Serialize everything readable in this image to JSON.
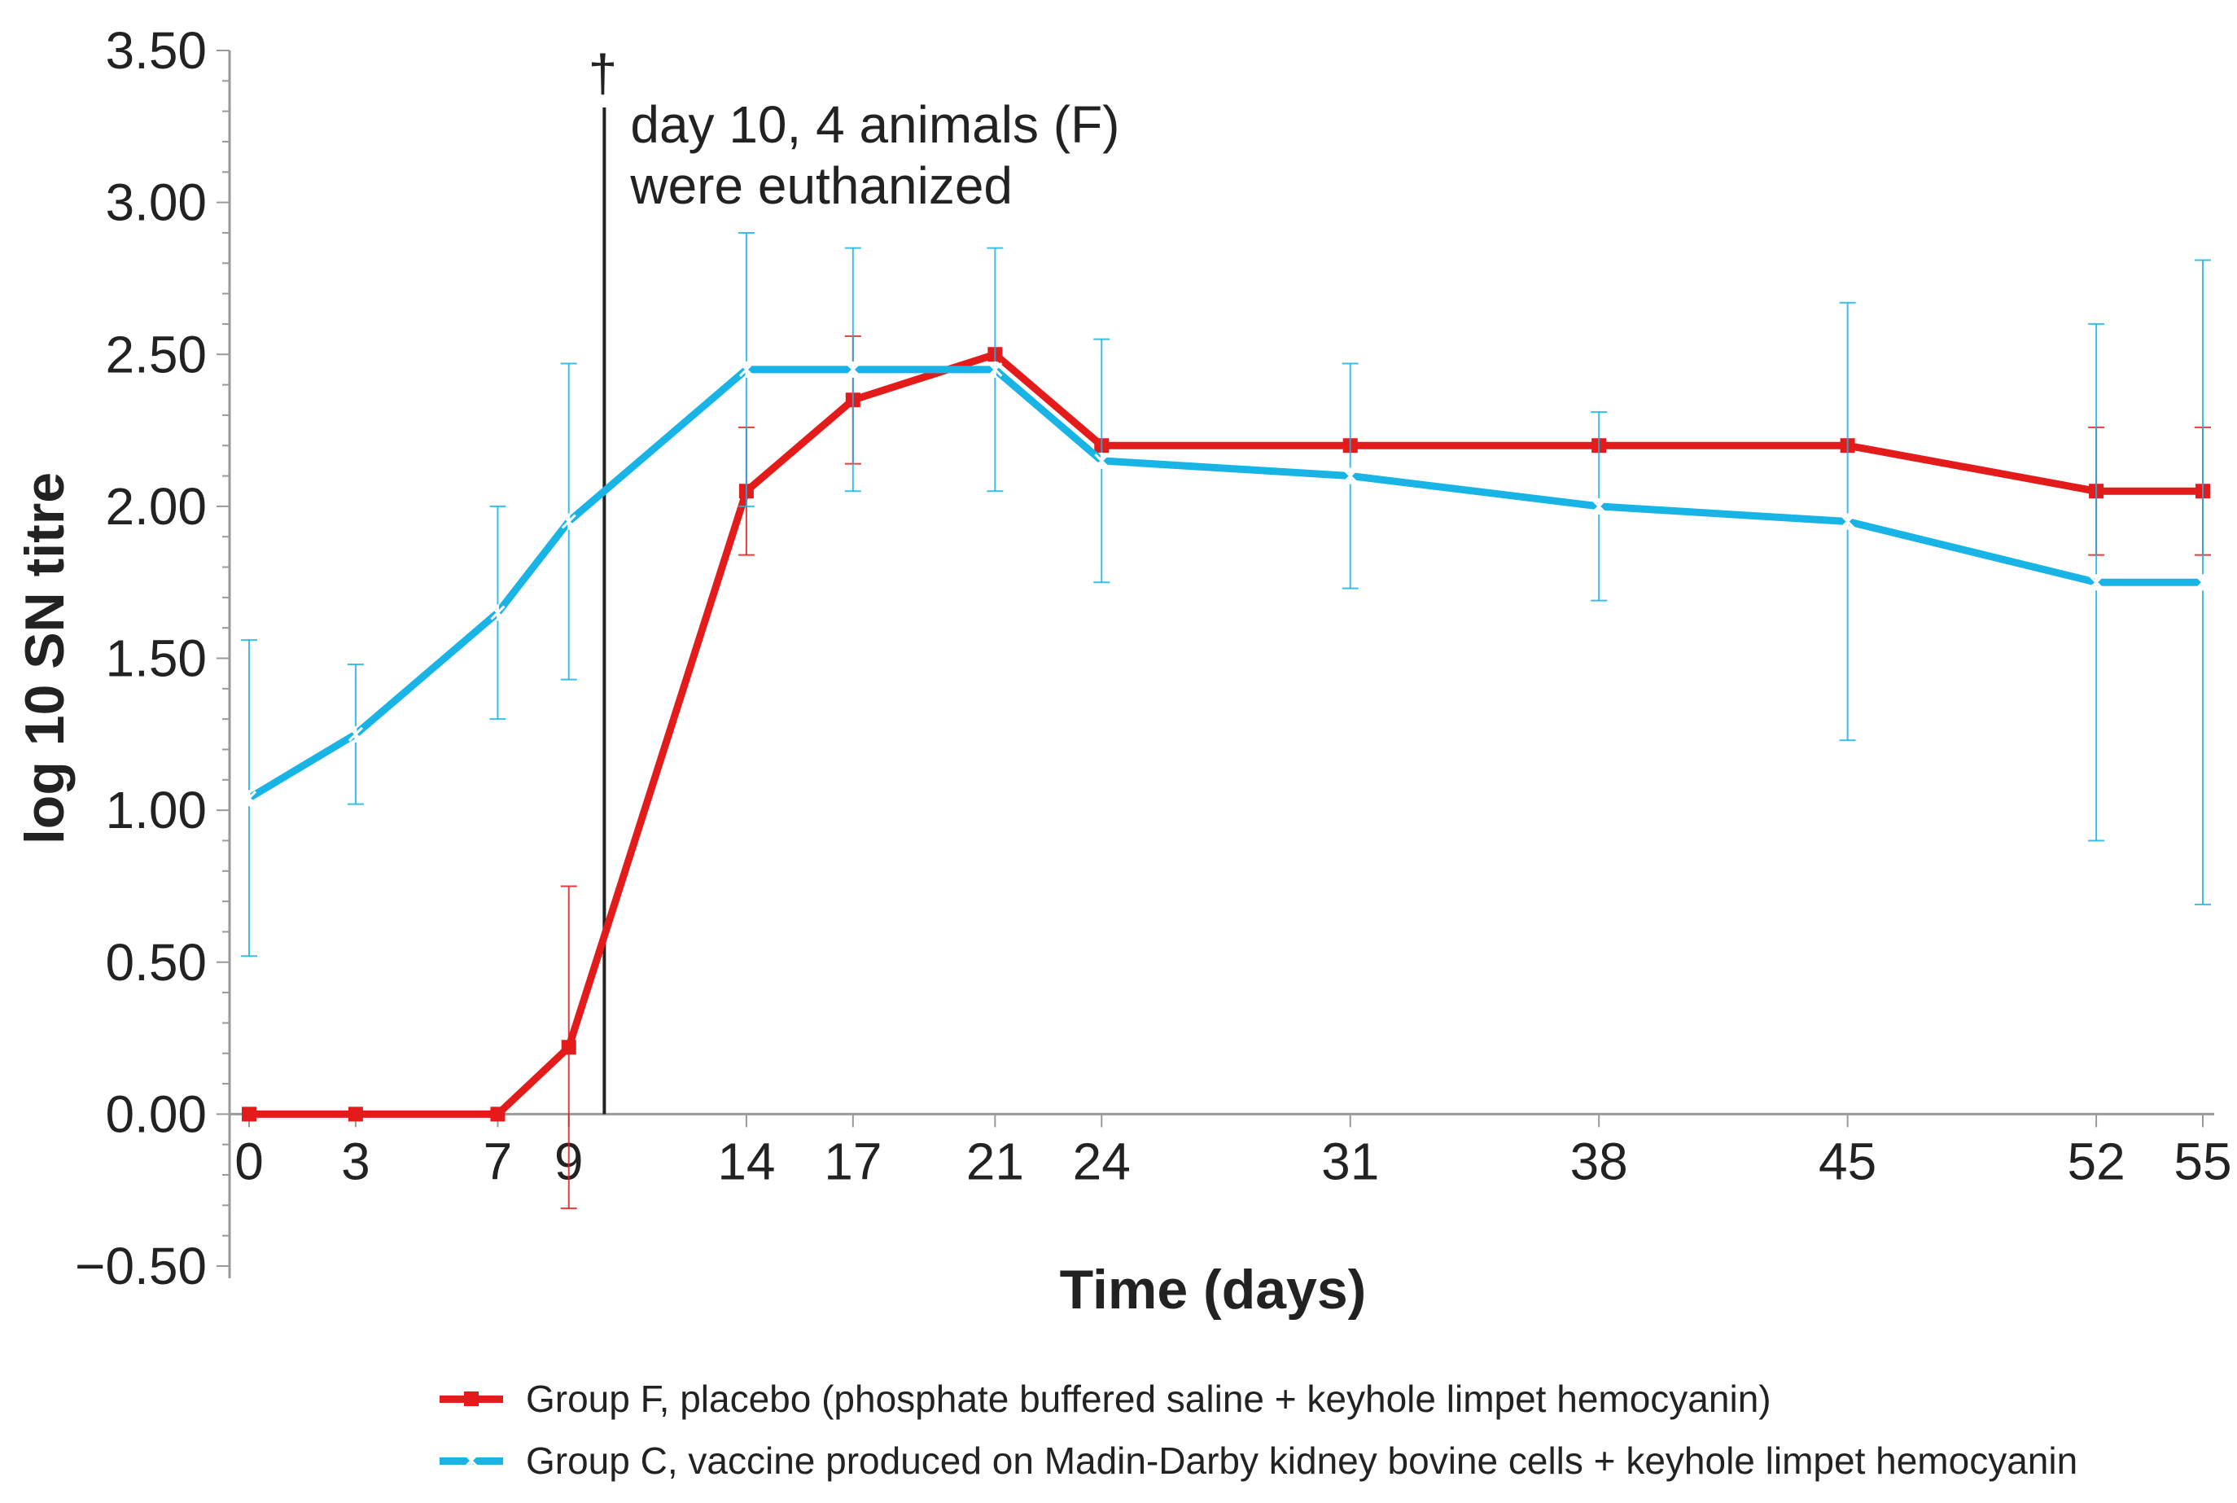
{
  "chart_data": {
    "type": "line",
    "title": "",
    "xlabel": "Time (days)",
    "ylabel": "log 10 SN titre",
    "xlim": [
      0,
      55
    ],
    "ylim": [
      -0.5,
      3.5
    ],
    "xticks": [
      0,
      3,
      7,
      9,
      14,
      17,
      21,
      24,
      31,
      38,
      45,
      52,
      55
    ],
    "xtick_labels": [
      "0",
      "3",
      "7",
      "9",
      "14",
      "17",
      "21",
      "24",
      "31",
      "38",
      "45",
      "52",
      "55"
    ],
    "yticks": [
      -0.5,
      0,
      0.5,
      1,
      1.5,
      2,
      2.5,
      3,
      3.5
    ],
    "ytick_labels": [
      "−0.50",
      "0.00",
      "0.50",
      "1.00",
      "1.50",
      "2.00",
      "2.50",
      "3.00",
      "3.50"
    ],
    "grid": false,
    "legend_position": "bottom",
    "series": [
      {
        "name": "Group F, placebo (phosphate buffered saline + keyhole limpet hemocyanin)",
        "color": "#e31b1b",
        "marker": "square",
        "x": [
          0,
          3,
          7,
          9,
          14,
          17,
          21,
          24,
          31,
          38,
          45,
          52,
          55
        ],
        "values": [
          0,
          0,
          0,
          0.22,
          2.05,
          2.35,
          2.5,
          2.2,
          2.2,
          2.2,
          2.2,
          2.05,
          2.05
        ],
        "error": [
          0,
          0,
          0,
          0.53,
          0.21,
          0.21,
          0,
          0,
          0,
          0,
          0,
          0.21,
          0.21
        ]
      },
      {
        "name": "Group C, vaccine produced on Madin-Darby kidney bovine cells + keyhole limpet hemocyanin",
        "color": "#18b4e6",
        "marker": "star",
        "x": [
          0,
          3,
          7,
          9,
          14,
          17,
          21,
          24,
          31,
          38,
          45,
          52,
          55
        ],
        "values": [
          1.04,
          1.25,
          1.65,
          1.95,
          2.45,
          2.45,
          2.45,
          2.15,
          2.1,
          2.0,
          1.95,
          1.75,
          1.75
        ],
        "error": [
          0.52,
          0.23,
          0.35,
          0.52,
          0.45,
          0.4,
          0.4,
          0.4,
          0.37,
          0.31,
          0.72,
          0.85,
          1.06
        ]
      }
    ],
    "annotation": {
      "x": 10,
      "symbol": "†",
      "line1": "day 10, 4 animals (F)",
      "line2": "were euthanized"
    }
  }
}
